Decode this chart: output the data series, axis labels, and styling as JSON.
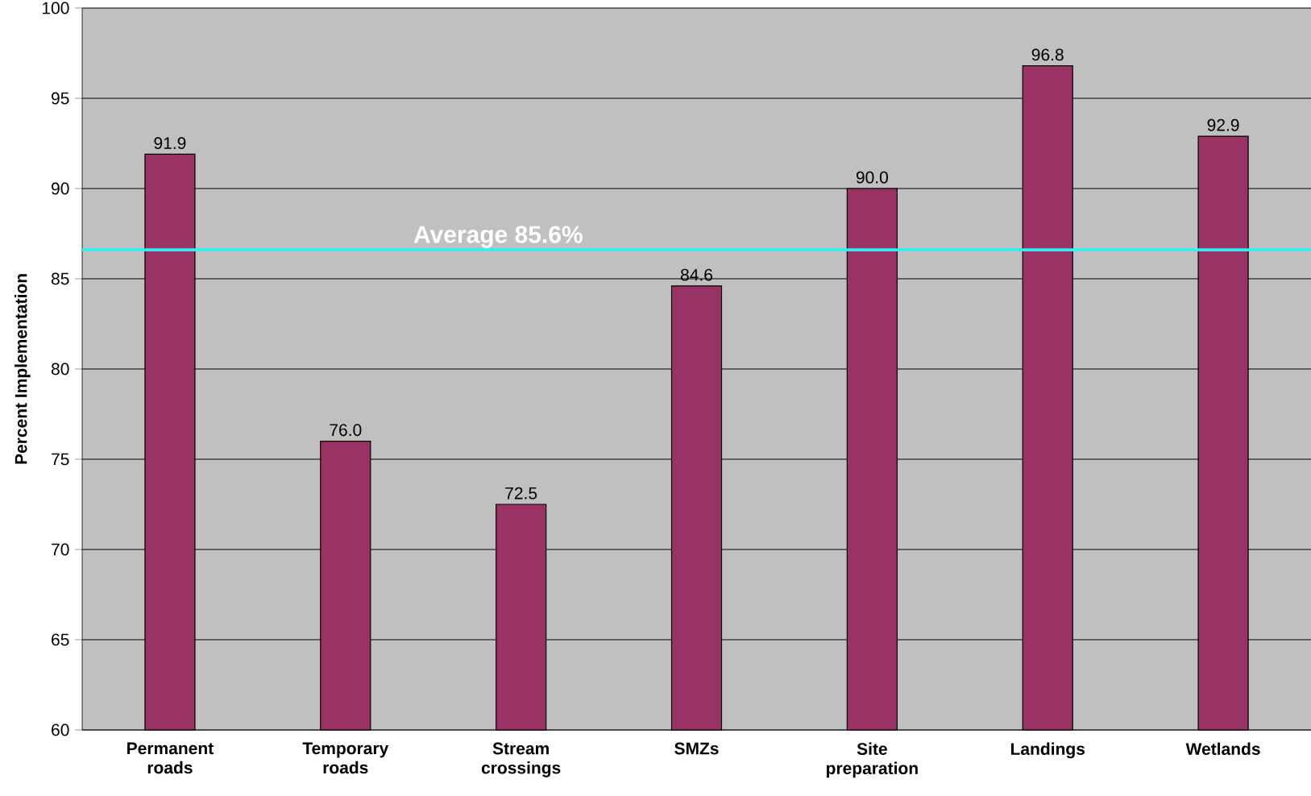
{
  "chart_data": {
    "type": "bar",
    "ylabel": "Percent Implementation",
    "categories": [
      "Permanent roads",
      "Temporary roads",
      "Stream crossings",
      "SMZs",
      "Site preparation",
      "Landings",
      "Wetlands"
    ],
    "values": [
      91.9,
      76.0,
      72.5,
      84.6,
      90.0,
      96.8,
      92.9
    ],
    "value_labels": [
      "91.9",
      "76.0",
      "72.5",
      "84.6",
      "90.0",
      "96.8",
      "92.9"
    ],
    "color": "#993366",
    "ylim": [
      60,
      100
    ],
    "yticks": [
      60,
      65,
      70,
      75,
      80,
      85,
      90,
      95,
      100
    ],
    "grid": "y",
    "ref_lines": [
      {
        "axis": "y",
        "value": 86.6,
        "label": "Average 85.6%",
        "color": "#33f0f0"
      }
    ]
  }
}
